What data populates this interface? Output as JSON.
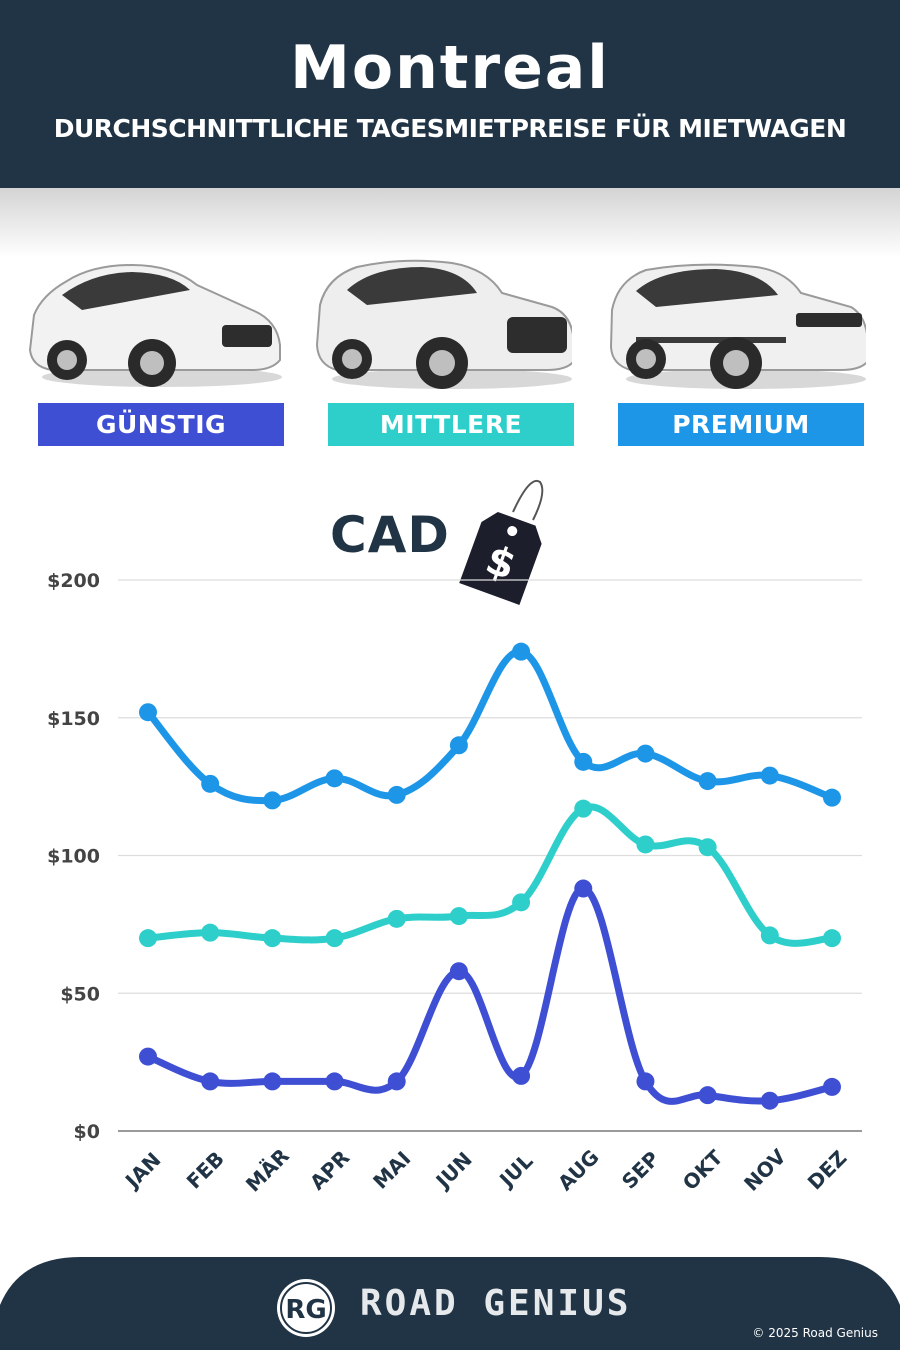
{
  "header": {
    "title": "Montreal",
    "subtitle": "DURCHSCHNITTLICHE TAGESMIETPREISE FÜR MIETWAGEN"
  },
  "categories": [
    {
      "label": "GÜNSTIG",
      "color": "#3f4fd4"
    },
    {
      "label": "MITTLERE",
      "color": "#2ecfcb"
    },
    {
      "label": "PREMIUM",
      "color": "#1e96e8"
    }
  ],
  "currency_label": "CAD",
  "tag_symbol": "$",
  "chart_data": {
    "type": "line",
    "x": [
      "JAN",
      "FEB",
      "MÄR",
      "APR",
      "MAI",
      "JUN",
      "JUL",
      "AUG",
      "SEP",
      "OKT",
      "NOV",
      "DEZ"
    ],
    "series": [
      {
        "name": "PREMIUM",
        "color": "#1e96e8",
        "values": [
          152,
          126,
          120,
          128,
          122,
          140,
          174,
          134,
          137,
          127,
          129,
          121
        ]
      },
      {
        "name": "MITTLERE",
        "color": "#2ecfcb",
        "values": [
          70,
          72,
          70,
          70,
          77,
          78,
          83,
          117,
          104,
          103,
          71,
          70
        ]
      },
      {
        "name": "GÜNSTIG",
        "color": "#3f4fd4",
        "values": [
          27,
          18,
          18,
          18,
          18,
          58,
          20,
          88,
          18,
          13,
          11,
          16
        ]
      }
    ],
    "y_ticks": [
      "$0",
      "$50",
      "$100",
      "$150",
      "$200"
    ],
    "ylim": [
      0,
      200
    ],
    "grid": true
  },
  "footer": {
    "logo_text": "RG",
    "brand": "ROAD GENIUS",
    "copyright": "© 2025 Road Genius"
  }
}
